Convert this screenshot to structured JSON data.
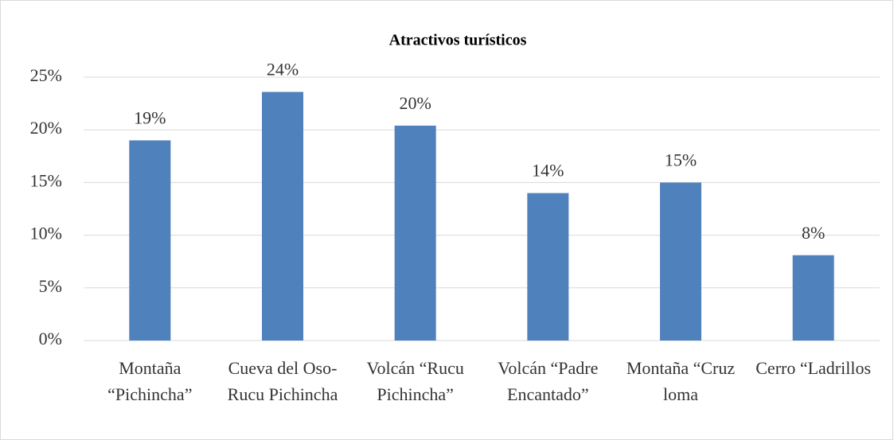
{
  "chart_data": {
    "type": "bar",
    "title": "Atractivos turísticos",
    "categories": [
      "Montaña “Pichincha”",
      "Cueva del Oso- Rucu Pichincha",
      "Volcán “Rucu Pichincha”",
      "Volcán “Padre Encantado”",
      "Montaña “Cruz loma",
      "Cerro “Ladrillos"
    ],
    "values": [
      19,
      23.6,
      20.4,
      14,
      15,
      8.1
    ],
    "value_labels": [
      "19%",
      "24%",
      "20%",
      "14%",
      "15%",
      "8%"
    ],
    "color": "#4f81bd",
    "ylim": [
      0,
      25
    ],
    "yticks": [
      {
        "value": 0,
        "label": "0%"
      },
      {
        "value": 5,
        "label": "5%"
      },
      {
        "value": 10,
        "label": "10%"
      },
      {
        "value": 15,
        "label": "15%"
      },
      {
        "value": 20,
        "label": "20%"
      },
      {
        "value": 25,
        "label": "25%"
      }
    ],
    "grid": true
  }
}
